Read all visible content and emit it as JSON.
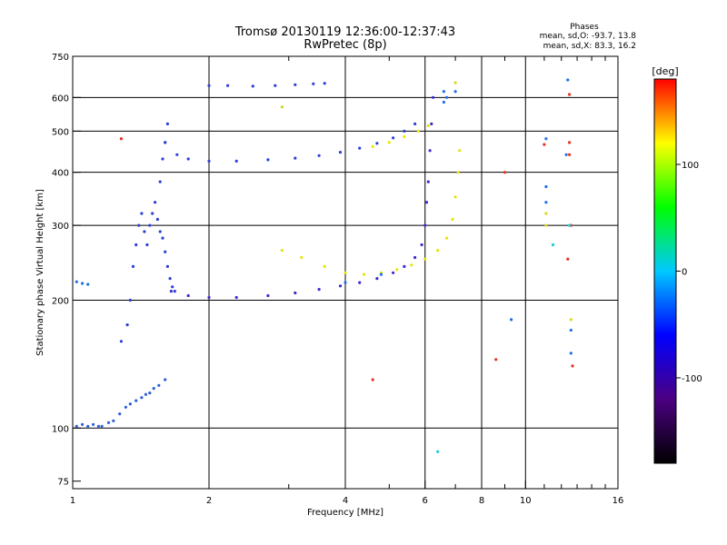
{
  "figure": {
    "title_line1": "Tromsø 20130119 12:36:00-12:37:43",
    "title_line2": "RwPretec (8p)",
    "stats_header": "Phases",
    "stats_line1": "mean, sd,O: -93.7, 13.8",
    "stats_line2": "mean, sd,X:  83.3, 16.2"
  },
  "chart_data": {
    "type": "scatter",
    "xlabel": "Frequency [MHz]",
    "ylabel": "Stationary phase Virtual Height [km]",
    "x_scale": "log",
    "y_scale": "log",
    "xlim": [
      1,
      16
    ],
    "ylim": [
      72,
      750
    ],
    "grid": true,
    "x_ticks": [
      {
        "value": 1,
        "label": "1"
      },
      {
        "value": 2,
        "label": "2"
      },
      {
        "value": 4,
        "label": "4"
      },
      {
        "value": 6,
        "label": "6"
      },
      {
        "value": 8,
        "label": "8"
      },
      {
        "value": 10,
        "label": "10"
      },
      {
        "value": 16,
        "label": "16"
      }
    ],
    "x_gridlines": [
      2,
      4,
      6,
      8,
      10
    ],
    "x_minor_ticks": [
      3,
      5,
      7,
      9,
      11,
      12,
      13,
      14,
      15
    ],
    "y_ticks": [
      {
        "value": 75,
        "label": "75"
      },
      {
        "value": 100,
        "label": "100"
      },
      {
        "value": 200,
        "label": "200"
      },
      {
        "value": 300,
        "label": "300"
      },
      {
        "value": 400,
        "label": "400"
      },
      {
        "value": 500,
        "label": "500"
      },
      {
        "value": 600,
        "label": "600"
      },
      {
        "value": 750,
        "label": "750"
      }
    ],
    "y_gridlines": [
      100,
      200,
      300,
      400,
      500,
      600
    ],
    "colorbar": {
      "label": "[deg]",
      "min": -180,
      "max": 180,
      "ticks": [
        {
          "value": 100,
          "label": "100"
        },
        {
          "value": 0,
          "label": "0"
        },
        {
          "value": -100,
          "label": "-100"
        }
      ],
      "colors": [
        "#000000",
        "#4b0082",
        "#0000ff",
        "#00c8ff",
        "#00ff00",
        "#ffff00",
        "#ff0000"
      ]
    },
    "series": [
      {
        "id": "lowE",
        "color": "#2d5fd6",
        "points": [
          [
            1.02,
            101
          ],
          [
            1.05,
            102
          ],
          [
            1.08,
            101
          ],
          [
            1.11,
            102
          ],
          [
            1.14,
            101
          ],
          [
            1.16,
            101
          ],
          [
            1.2,
            103
          ],
          [
            1.23,
            104
          ],
          [
            1.27,
            108
          ],
          [
            1.31,
            112
          ],
          [
            1.34,
            114
          ],
          [
            1.38,
            116
          ],
          [
            1.42,
            118
          ],
          [
            1.45,
            120
          ],
          [
            1.48,
            121
          ],
          [
            1.51,
            124
          ],
          [
            1.55,
            126
          ],
          [
            1.6,
            130
          ]
        ]
      },
      {
        "id": "cusp",
        "color": "#2a3fd8",
        "points": [
          [
            1.28,
            160
          ],
          [
            1.32,
            175
          ],
          [
            1.34,
            200
          ],
          [
            1.36,
            240
          ],
          [
            1.38,
            270
          ],
          [
            1.4,
            300
          ],
          [
            1.42,
            320
          ],
          [
            1.44,
            290
          ],
          [
            1.46,
            270
          ],
          [
            1.48,
            300
          ],
          [
            1.5,
            320
          ],
          [
            1.52,
            340
          ],
          [
            1.54,
            310
          ],
          [
            1.56,
            290
          ],
          [
            1.58,
            280
          ],
          [
            1.6,
            260
          ],
          [
            1.62,
            240
          ],
          [
            1.64,
            225
          ],
          [
            1.66,
            215
          ],
          [
            1.68,
            210
          ],
          [
            1.56,
            380
          ],
          [
            1.58,
            430
          ],
          [
            1.6,
            470
          ],
          [
            1.62,
            520
          ]
        ]
      },
      {
        "id": "F2o",
        "color": "#3b2bd0",
        "points": [
          [
            1.65,
            210
          ],
          [
            1.8,
            205
          ],
          [
            2.0,
            203
          ],
          [
            2.3,
            203
          ],
          [
            2.7,
            205
          ],
          [
            3.1,
            208
          ],
          [
            3.5,
            212
          ],
          [
            3.9,
            216
          ],
          [
            4.3,
            220
          ],
          [
            4.7,
            225
          ],
          [
            5.1,
            232
          ],
          [
            5.4,
            240
          ],
          [
            5.7,
            252
          ],
          [
            5.9,
            270
          ],
          [
            6.0,
            300
          ],
          [
            6.05,
            340
          ],
          [
            6.1,
            380
          ],
          [
            6.15,
            450
          ],
          [
            6.2,
            520
          ],
          [
            6.25,
            600
          ]
        ]
      },
      {
        "id": "F2x",
        "color": "#e5e50a",
        "points": [
          [
            2.9,
            262
          ],
          [
            3.2,
            252
          ],
          [
            3.6,
            240
          ],
          [
            4.0,
            232
          ],
          [
            4.4,
            230
          ],
          [
            4.8,
            232
          ],
          [
            5.2,
            236
          ],
          [
            5.6,
            242
          ],
          [
            6.0,
            250
          ],
          [
            6.4,
            262
          ],
          [
            6.7,
            280
          ],
          [
            6.9,
            310
          ],
          [
            7.0,
            350
          ],
          [
            7.1,
            400
          ],
          [
            7.15,
            450
          ]
        ]
      },
      {
        "id": "upperF",
        "color": "#2a40d8",
        "points": [
          [
            1.6,
            470
          ],
          [
            1.7,
            440
          ],
          [
            1.8,
            430
          ],
          [
            2.0,
            425
          ],
          [
            2.3,
            425
          ],
          [
            2.7,
            428
          ],
          [
            3.1,
            432
          ],
          [
            3.5,
            438
          ],
          [
            3.9,
            446
          ],
          [
            4.3,
            456
          ],
          [
            4.7,
            468
          ],
          [
            5.1,
            482
          ],
          [
            5.4,
            500
          ],
          [
            5.7,
            520
          ]
        ]
      },
      {
        "id": "upperFx",
        "color": "#e5e50a",
        "points": [
          [
            4.6,
            460
          ],
          [
            5.0,
            470
          ],
          [
            5.4,
            485
          ],
          [
            5.8,
            500
          ],
          [
            6.1,
            515
          ]
        ]
      },
      {
        "id": "top",
        "color": "#2a40d8",
        "points": [
          [
            2.0,
            640
          ],
          [
            2.2,
            640
          ],
          [
            2.5,
            638
          ],
          [
            2.8,
            640
          ],
          [
            3.1,
            643
          ],
          [
            3.4,
            646
          ],
          [
            3.6,
            648
          ]
        ]
      },
      {
        "id": "scatter_blue",
        "color": "#1f6fe8",
        "points": [
          [
            1.02,
            221
          ],
          [
            1.05,
            219
          ],
          [
            1.08,
            218
          ],
          [
            4.0,
            220
          ],
          [
            4.8,
            230
          ],
          [
            6.6,
            585
          ],
          [
            6.7,
            600
          ],
          [
            6.6,
            620
          ],
          [
            7.0,
            620
          ],
          [
            11.1,
            480
          ],
          [
            11.1,
            370
          ],
          [
            12.3,
            440
          ],
          [
            12.4,
            660
          ],
          [
            11.1,
            340
          ],
          [
            9.3,
            180
          ],
          [
            12.6,
            170
          ],
          [
            12.6,
            150
          ]
        ]
      },
      {
        "id": "scatter_red",
        "color": "#e83020",
        "points": [
          [
            1.28,
            480
          ],
          [
            8.6,
            145
          ],
          [
            4.6,
            130
          ],
          [
            9.0,
            400
          ],
          [
            12.5,
            610
          ],
          [
            12.5,
            470
          ],
          [
            12.4,
            250
          ],
          [
            11.0,
            465
          ],
          [
            12.7,
            140
          ],
          [
            12.6,
            300
          ],
          [
            12.5,
            440
          ]
        ]
      },
      {
        "id": "scatter_yellow",
        "color": "#d8d820",
        "points": [
          [
            2.9,
            570
          ],
          [
            7.0,
            650
          ],
          [
            11.1,
            300
          ],
          [
            11.1,
            320
          ],
          [
            12.6,
            180
          ]
        ]
      },
      {
        "id": "scatter_cyan",
        "color": "#20c8d8",
        "points": [
          [
            6.4,
            88
          ],
          [
            11.5,
            270
          ],
          [
            12.5,
            300
          ]
        ]
      }
    ]
  }
}
